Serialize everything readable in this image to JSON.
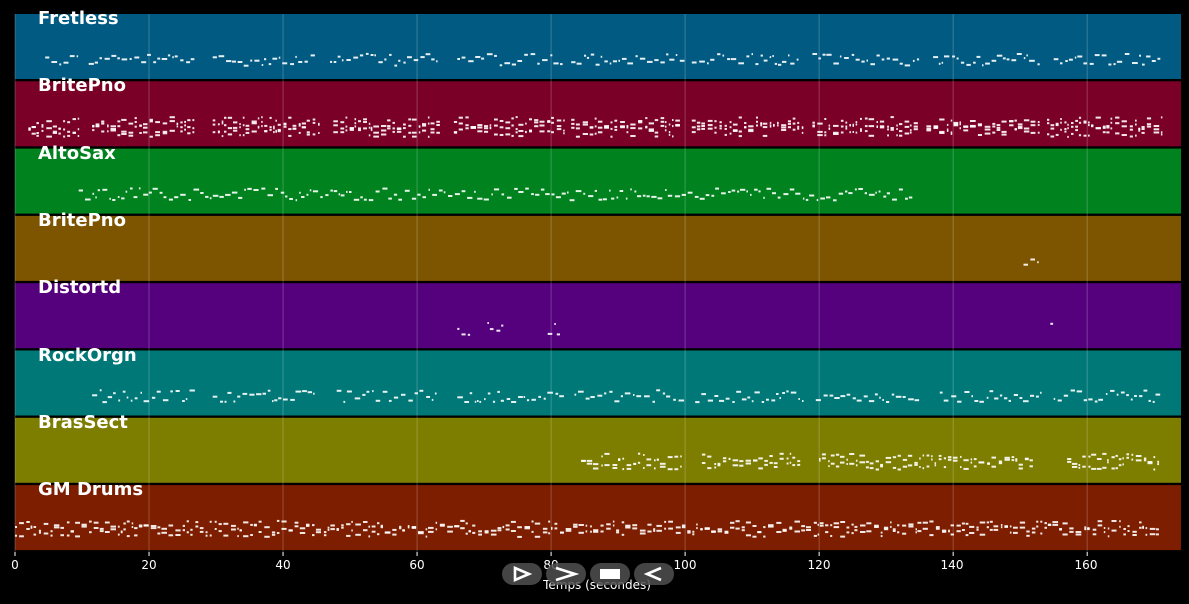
{
  "chart_data": {
    "type": "piano-roll",
    "xlabel": "Temps (secondes)",
    "xlim": [
      0,
      174
    ],
    "xticks": [
      0,
      20,
      40,
      60,
      80,
      100,
      120,
      140,
      160
    ],
    "grid": true,
    "tracks": [
      {
        "name": "Fretless",
        "color": "#005a82",
        "activity": [
          [
            4.5,
            9.5
          ],
          [
            11,
            27
          ],
          [
            29.5,
            45
          ],
          [
            47,
            63
          ],
          [
            66,
            82
          ],
          [
            83,
            100
          ],
          [
            101,
            117
          ],
          [
            119,
            135
          ],
          [
            137,
            153
          ],
          [
            155,
            171
          ]
        ]
      },
      {
        "name": "BritePno",
        "color": "#7a0028",
        "activity": [
          [
            2,
            9.5
          ],
          [
            11.5,
            27
          ],
          [
            29.5,
            45.5
          ],
          [
            47.5,
            63.5
          ],
          [
            65.5,
            82
          ],
          [
            83,
            99.5
          ],
          [
            101,
            117.5
          ],
          [
            119,
            135
          ],
          [
            136,
            153
          ],
          [
            154,
            171
          ]
        ]
      },
      {
        "name": "AltoSax",
        "color": "#00821e",
        "activity": [
          [
            9.5,
            134
          ]
        ]
      },
      {
        "name": "BritePno",
        "color": "#7d5500",
        "activity": [
          [
            150.5,
            153
          ]
        ]
      },
      {
        "name": "Distortd",
        "color": "#55007d",
        "activity": [
          [
            66,
            68
          ],
          [
            70.5,
            73
          ],
          [
            79.5,
            81.5
          ],
          [
            154.5,
            155
          ]
        ]
      },
      {
        "name": "RockOrgn",
        "color": "#007878",
        "activity": [
          [
            11.5,
            27
          ],
          [
            29.5,
            45
          ],
          [
            48,
            63
          ],
          [
            66,
            82
          ],
          [
            83.5,
            100
          ],
          [
            101.5,
            117.5
          ],
          [
            119.5,
            135
          ],
          [
            138,
            153
          ],
          [
            155,
            171
          ]
        ]
      },
      {
        "name": "BrasSect",
        "color": "#7d7d00",
        "activity": [
          [
            84.5,
            99.5
          ],
          [
            102.5,
            117.5
          ],
          [
            120,
            152
          ],
          [
            157,
            171
          ]
        ]
      },
      {
        "name": "GM Drums",
        "color": "#7d1e00",
        "activity": [
          [
            0,
            171
          ]
        ]
      }
    ]
  },
  "controls": [
    {
      "name": "play-icon"
    },
    {
      "name": "fast-forward-icon"
    },
    {
      "name": "stop-icon"
    },
    {
      "name": "rewind-icon"
    }
  ]
}
